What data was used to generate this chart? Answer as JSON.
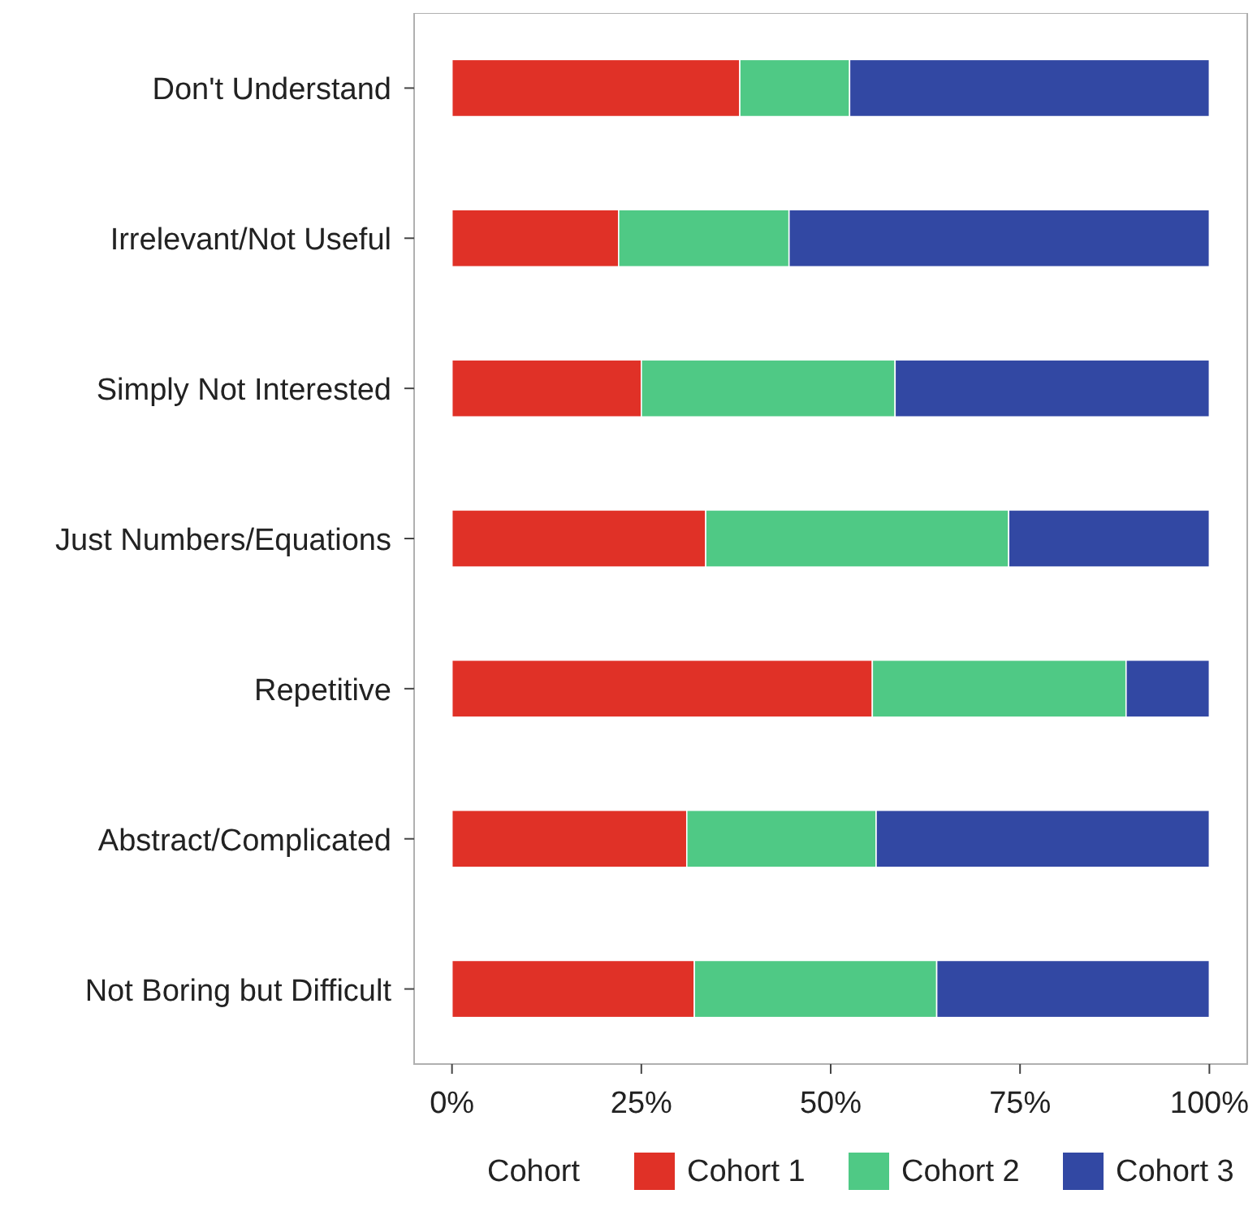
{
  "chart_data": {
    "type": "bar",
    "orientation": "horizontal",
    "stacked": true,
    "legend": "bottom",
    "legend_title": "Cohort",
    "grid": false,
    "categories": [
      "Don't Understand",
      "Irrelevant/Not Useful",
      "Simply Not Interested",
      "Just Numbers/Equations",
      "Repetitive",
      "Abstract/Complicated",
      "Not Boring but Difficult"
    ],
    "series": [
      {
        "name": "Cohort 1",
        "color": "#e03127",
        "values": [
          38,
          22,
          25,
          33.5,
          55.5,
          31,
          32
        ]
      },
      {
        "name": "Cohort 2",
        "color": "#4fc985",
        "values": [
          14.5,
          22.5,
          33.5,
          40,
          33.5,
          25,
          32
        ]
      },
      {
        "name": "Cohort 3",
        "color": "#3248a3",
        "values": [
          47.5,
          55.5,
          41.5,
          26.5,
          11,
          44,
          36
        ]
      }
    ],
    "xlim": [
      -5,
      105
    ],
    "xticks": [
      {
        "value": 0,
        "label": "0%"
      },
      {
        "value": 25,
        "label": "25%"
      },
      {
        "value": 50,
        "label": "50%"
      },
      {
        "value": 75,
        "label": "75%"
      },
      {
        "value": 100,
        "label": "100%"
      }
    ]
  }
}
